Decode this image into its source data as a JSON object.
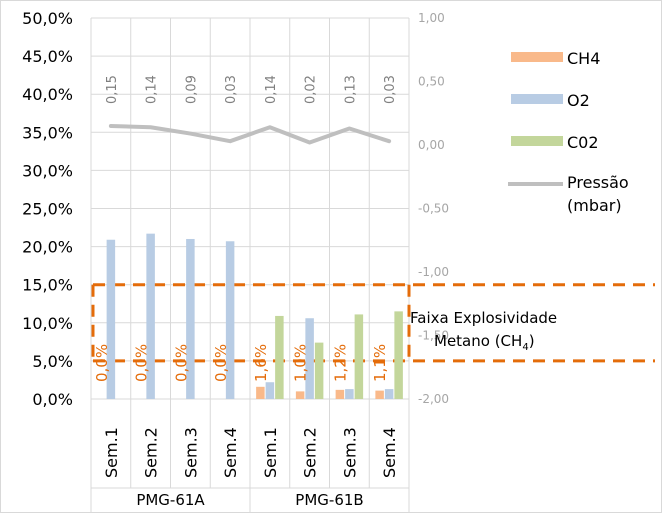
{
  "chart_data": {
    "type": "bar",
    "groups": [
      {
        "name": "PMG-61A",
        "categories": [
          "Sem.1",
          "Sem.2",
          "Sem.3",
          "Sem.4"
        ]
      },
      {
        "name": "PMG-61B",
        "categories": [
          "Sem.1",
          "Sem.2",
          "Sem.3",
          "Sem.4"
        ]
      }
    ],
    "series": [
      {
        "name": "CH4",
        "axis": "left",
        "color": "#f9b98a",
        "values": [
          0.0,
          0.0,
          0.0,
          0.0,
          1.6,
          1.0,
          1.2,
          1.1
        ]
      },
      {
        "name": "O2",
        "axis": "left",
        "color": "#b8cce4",
        "values": [
          20.9,
          21.7,
          21.0,
          20.7,
          2.2,
          10.6,
          1.3,
          1.3
        ]
      },
      {
        "name": "C02",
        "axis": "left",
        "color": "#c3d69b",
        "values": [
          0.0,
          0.0,
          0.0,
          0.0,
          10.9,
          7.4,
          11.1,
          11.5
        ]
      },
      {
        "name": "Pressão (mbar)",
        "axis": "right",
        "type": "line",
        "color": "#bfbfbf",
        "values": [
          0.15,
          0.14,
          0.09,
          0.03,
          0.14,
          0.02,
          0.13,
          0.03
        ]
      }
    ],
    "ch4_labels": [
      "0,0%",
      "0,0%",
      "0,0%",
      "0,0%",
      "1,6%",
      "1,0%",
      "1,2%",
      "1,1%"
    ],
    "pressure_labels": [
      "0,15",
      "0,14",
      "0,09",
      "0,03",
      "0,14",
      "0,02",
      "0,13",
      "0,03"
    ],
    "y_left": {
      "min": 0,
      "max": 50,
      "ticks": [
        "0,0%",
        "5,0%",
        "10,0%",
        "15,0%",
        "20,0%",
        "25,0%",
        "30,0%",
        "35,0%",
        "40,0%",
        "45,0%",
        "50,0%"
      ]
    },
    "y_right": {
      "min": -2.0,
      "max": 1.0,
      "ticks": [
        "-2,00",
        "-1,50",
        "-1,00",
        "-0,50",
        "0,00",
        "0,50",
        "1,00"
      ]
    },
    "band": {
      "low": 5,
      "high": 15,
      "label_line1": "Faixa Explosividade",
      "label_line2": "Metano (CH",
      "label_sub": "4",
      "label_end": ")",
      "color": "#e46c0a"
    },
    "legend": [
      {
        "label": "CH4",
        "color": "#f9b98a",
        "kind": "box"
      },
      {
        "label": "O2",
        "color": "#b8cce4",
        "kind": "box"
      },
      {
        "label": "C02",
        "color": "#c3d69b",
        "kind": "box"
      },
      {
        "label_line1": "Pressão",
        "label_line2": "(mbar)",
        "color": "#bfbfbf",
        "kind": "line"
      }
    ],
    "gridlines": true,
    "legend_position": "right"
  }
}
